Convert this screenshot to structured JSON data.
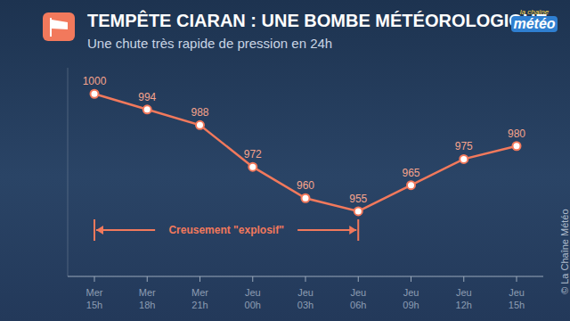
{
  "chart_data": {
    "type": "line",
    "title": "TEMPÊTE CIARAN : UNE BOMBE MÉTÉOROLOGIQUE",
    "subtitle": "Une chute très rapide de pression en 24h",
    "categories": [
      "Mer 15h",
      "Mer 18h",
      "Mer 21h",
      "Jeu 00h",
      "Jeu 03h",
      "Jeu 06h",
      "Jeu 09h",
      "Jeu 12h",
      "Jeu 15h"
    ],
    "values": [
      1000,
      994,
      988,
      972,
      960,
      955,
      965,
      975,
      980
    ],
    "color": "#f2795c",
    "ylim": [
      930,
      1010
    ],
    "grid": false,
    "data_labels": true,
    "tick_labels": "x",
    "marker": "circle",
    "annotations": [
      {
        "text": "Creusement \"explosif\"",
        "from": "Mer 15h",
        "to": "Jeu 06h"
      }
    ],
    "logo": "la chaîne météo",
    "credit": "© La Chaîne Météo"
  }
}
